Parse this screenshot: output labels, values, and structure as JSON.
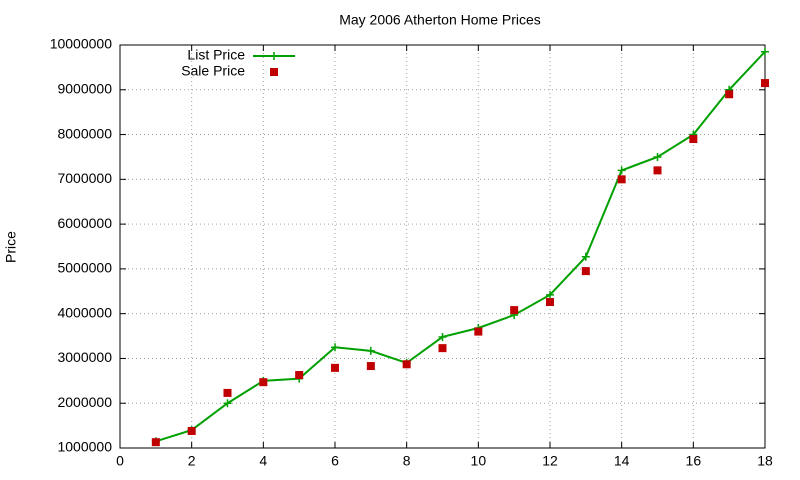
{
  "chart_data": {
    "type": "line",
    "title": "May 2006 Atherton Home Prices",
    "y_label": "Price",
    "x": [
      1,
      2,
      3,
      4,
      5,
      6,
      7,
      8,
      9,
      10,
      11,
      12,
      13,
      14,
      15,
      16,
      17,
      18
    ],
    "series": [
      {
        "name": "List Price",
        "type": "line",
        "color": "#00a000",
        "values": [
          1150000,
          1400000,
          2000000,
          2500000,
          2550000,
          3250000,
          3170000,
          2900000,
          3480000,
          3680000,
          3970000,
          4420000,
          5270000,
          7200000,
          7500000,
          8000000,
          9000000,
          9850000
        ]
      },
      {
        "name": "Sale Price",
        "type": "scatter",
        "color": "#c00000",
        "values": [
          1130000,
          1380000,
          2230000,
          2470000,
          2630000,
          2790000,
          2830000,
          2870000,
          3230000,
          3600000,
          4080000,
          4260000,
          4950000,
          7000000,
          7200000,
          7900000,
          8900000,
          9150000
        ]
      }
    ],
    "xlim": [
      0,
      18
    ],
    "xticks": [
      0,
      2,
      4,
      6,
      8,
      10,
      12,
      14,
      16,
      18
    ],
    "ylim": [
      1000000,
      10000000
    ],
    "yticks": [
      1000000,
      2000000,
      3000000,
      4000000,
      5000000,
      6000000,
      7000000,
      8000000,
      9000000,
      10000000
    ],
    "grid": true,
    "legend": "top-left"
  }
}
